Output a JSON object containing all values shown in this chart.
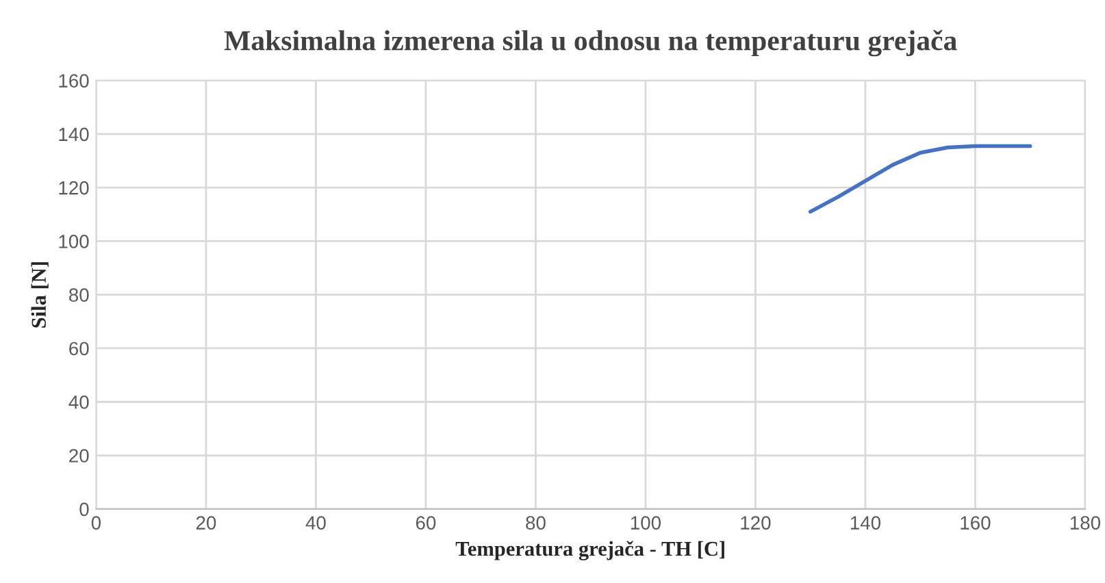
{
  "chart_data": {
    "type": "line",
    "title": "Maksimalna izmerena sila u odnosu na temperaturu grejača",
    "xlabel": "Temperatura grejača - TH [C]",
    "ylabel": "Sila [N]",
    "x": [
      130,
      135,
      140,
      145,
      150,
      155,
      160,
      165,
      170
    ],
    "series": [
      {
        "color": "#4472c4",
        "values": [
          111,
          116.5,
          122.5,
          128.5,
          133,
          135,
          135.5,
          135.5,
          135.5
        ]
      }
    ],
    "xlim": [
      0,
      180
    ],
    "xticks": [
      0,
      20,
      40,
      60,
      80,
      100,
      120,
      140,
      160,
      180
    ],
    "ylim": [
      0,
      160
    ],
    "yticks": [
      0,
      20,
      40,
      60,
      80,
      100,
      120,
      140,
      160
    ],
    "grid": true,
    "marker": "none",
    "line_style": "solid"
  }
}
